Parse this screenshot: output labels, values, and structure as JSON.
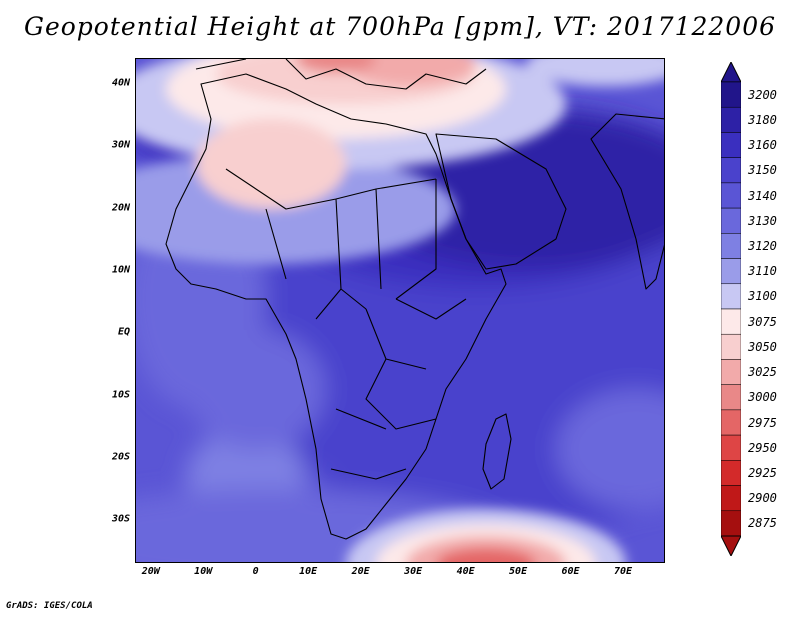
{
  "title": "Geopotential Height at 700hPa [gpm], VT: 2017122006",
  "credit": "GrADS: IGES/COLA",
  "map": {
    "lat_labels": [
      "40N",
      "30N",
      "20N",
      "10N",
      "EQ",
      "10S",
      "20S",
      "30S"
    ],
    "lon_labels": [
      "20W",
      "10W",
      "0",
      "10E",
      "20E",
      "30E",
      "40E",
      "50E",
      "60E",
      "70E"
    ],
    "lat_range": [
      -37,
      44
    ],
    "lon_range": [
      -23,
      78
    ]
  },
  "colorbar": {
    "labels": [
      "3200",
      "3180",
      "3160",
      "3150",
      "3140",
      "3130",
      "3120",
      "3110",
      "3100",
      "3075",
      "3050",
      "3025",
      "3000",
      "2975",
      "2950",
      "2925",
      "2900",
      "2875"
    ],
    "colors": [
      "#21158a",
      "#2d21a6",
      "#3a2fbf",
      "#4a42cc",
      "#5a55d5",
      "#6a68dc",
      "#7e80e3",
      "#9a9ce9",
      "#c8c8f3",
      "#fde9e9",
      "#f8cfcf",
      "#f2aaaa",
      "#e98888",
      "#e46666",
      "#de4545",
      "#d32a2a",
      "#c01818",
      "#a50f0f"
    ]
  }
}
